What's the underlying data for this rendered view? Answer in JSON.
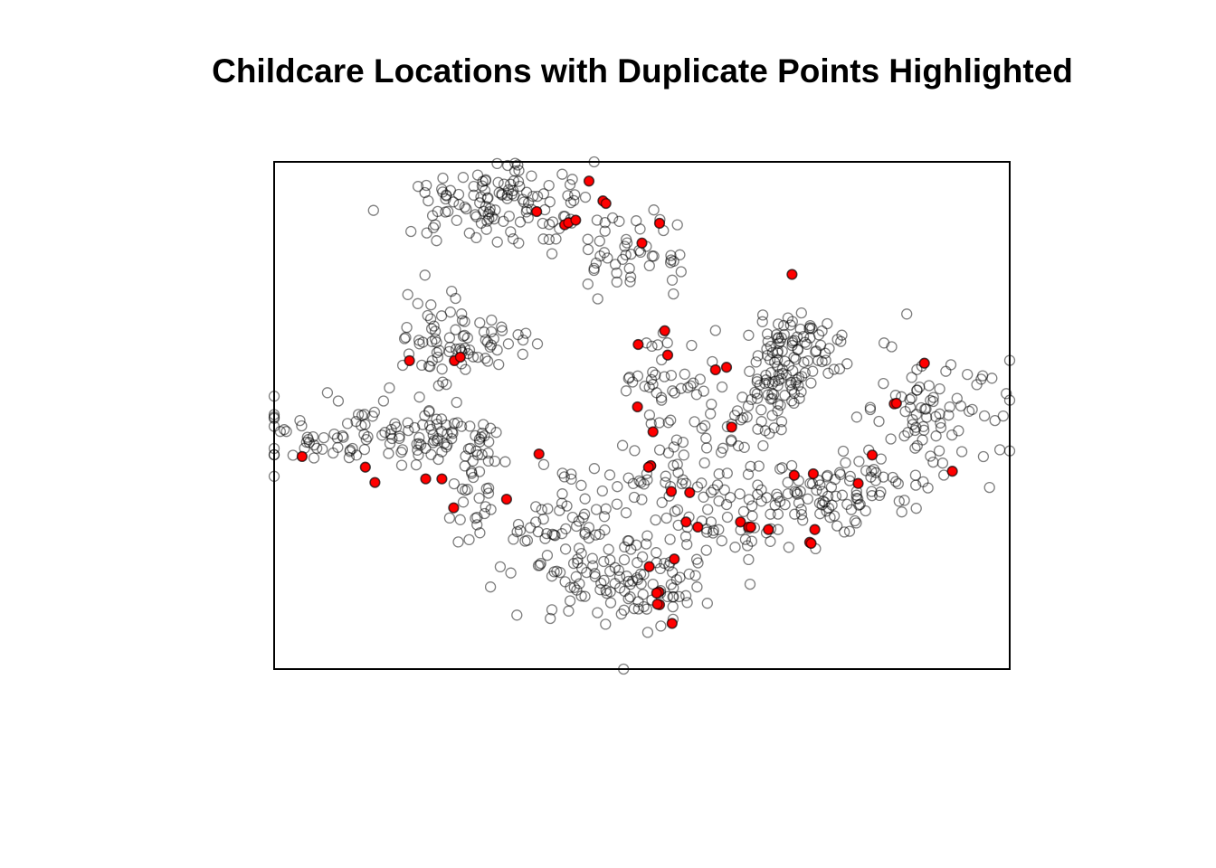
{
  "chart_data": {
    "type": "scatter",
    "title": "Childcare Locations with Duplicate Points Highlighted",
    "xlabel": "",
    "ylabel": "",
    "axes_shown": false,
    "grid": false,
    "frame": true,
    "colors": {
      "point_stroke": "#000000",
      "point_stroke_opacity": 0.5,
      "duplicate_fill": "#ff0000",
      "frame": "#000000"
    },
    "series": [
      {
        "role": "all-locations",
        "marker": "open-circle"
      },
      {
        "role": "duplicate-locations",
        "marker": "filled-circle"
      }
    ],
    "clusters": [
      [
        0.3,
        0.92,
        0.06,
        0.04,
        120
      ],
      [
        0.5,
        0.82,
        0.05,
        0.04,
        45
      ],
      [
        0.22,
        0.64,
        0.025,
        0.06,
        45
      ],
      [
        0.29,
        0.64,
        0.03,
        0.03,
        35
      ],
      [
        0.06,
        0.45,
        0.05,
        0.025,
        40
      ],
      [
        0.13,
        0.48,
        0.025,
        0.03,
        20
      ],
      [
        0.21,
        0.46,
        0.03,
        0.035,
        50
      ],
      [
        0.28,
        0.45,
        0.02,
        0.02,
        15
      ],
      [
        0.27,
        0.33,
        0.02,
        0.04,
        25
      ],
      [
        0.39,
        0.27,
        0.035,
        0.03,
        35
      ],
      [
        0.45,
        0.18,
        0.06,
        0.05,
        80
      ],
      [
        0.53,
        0.17,
        0.035,
        0.04,
        35
      ],
      [
        0.52,
        0.36,
        0.04,
        0.04,
        40
      ],
      [
        0.53,
        0.56,
        0.03,
        0.05,
        40
      ],
      [
        0.61,
        0.46,
        0.04,
        0.05,
        45
      ],
      [
        0.71,
        0.62,
        0.035,
        0.04,
        90
      ],
      [
        0.68,
        0.54,
        0.03,
        0.03,
        35
      ],
      [
        0.88,
        0.49,
        0.05,
        0.06,
        80
      ],
      [
        0.76,
        0.35,
        0.06,
        0.04,
        80
      ],
      [
        0.64,
        0.29,
        0.04,
        0.04,
        45
      ],
      [
        0.4,
        0.38,
        0.02,
        0.02,
        8
      ],
      [
        0.29,
        0.2,
        0.05,
        0.03,
        4
      ]
    ],
    "outliers": [
      [
        0.0,
        0.38
      ],
      [
        0.475,
        0.0
      ],
      [
        1.0,
        0.53
      ],
      [
        0.435,
        1.0
      ],
      [
        0.98,
        0.49
      ],
      [
        0.435,
        0.79
      ],
      [
        0.44,
        0.73
      ],
      [
        0.86,
        0.7
      ],
      [
        0.92,
        0.6
      ],
      [
        0.035,
        0.49
      ]
    ],
    "duplicates": [
      [
        0.357,
        0.902
      ],
      [
        0.395,
        0.876
      ],
      [
        0.4,
        0.88
      ],
      [
        0.41,
        0.885
      ],
      [
        0.447,
        0.923
      ],
      [
        0.451,
        0.918
      ],
      [
        0.428,
        0.962
      ],
      [
        0.524,
        0.879
      ],
      [
        0.5,
        0.84
      ],
      [
        0.184,
        0.608
      ],
      [
        0.245,
        0.608
      ],
      [
        0.253,
        0.615
      ],
      [
        0.038,
        0.419
      ],
      [
        0.124,
        0.398
      ],
      [
        0.137,
        0.368
      ],
      [
        0.206,
        0.375
      ],
      [
        0.228,
        0.375
      ],
      [
        0.244,
        0.318
      ],
      [
        0.316,
        0.335
      ],
      [
        0.36,
        0.424
      ],
      [
        0.495,
        0.64
      ],
      [
        0.531,
        0.667
      ],
      [
        0.535,
        0.619
      ],
      [
        0.615,
        0.595
      ],
      [
        0.6,
        0.59
      ],
      [
        0.622,
        0.477
      ],
      [
        0.494,
        0.517
      ],
      [
        0.515,
        0.468
      ],
      [
        0.512,
        0.401
      ],
      [
        0.509,
        0.398
      ],
      [
        0.54,
        0.35
      ],
      [
        0.565,
        0.348
      ],
      [
        0.56,
        0.29
      ],
      [
        0.576,
        0.28
      ],
      [
        0.634,
        0.29
      ],
      [
        0.645,
        0.28
      ],
      [
        0.648,
        0.28
      ],
      [
        0.544,
        0.217
      ],
      [
        0.51,
        0.202
      ],
      [
        0.523,
        0.152
      ],
      [
        0.52,
        0.15
      ],
      [
        0.541,
        0.09
      ],
      [
        0.524,
        0.127
      ],
      [
        0.521,
        0.128
      ],
      [
        0.704,
        0.778
      ],
      [
        0.843,
        0.523
      ],
      [
        0.846,
        0.524
      ],
      [
        0.884,
        0.603
      ],
      [
        0.922,
        0.39
      ],
      [
        0.813,
        0.422
      ],
      [
        0.794,
        0.366
      ],
      [
        0.733,
        0.385
      ],
      [
        0.707,
        0.382
      ],
      [
        0.672,
        0.275
      ],
      [
        0.735,
        0.275
      ],
      [
        0.728,
        0.25
      ],
      [
        0.73,
        0.248
      ]
    ]
  }
}
